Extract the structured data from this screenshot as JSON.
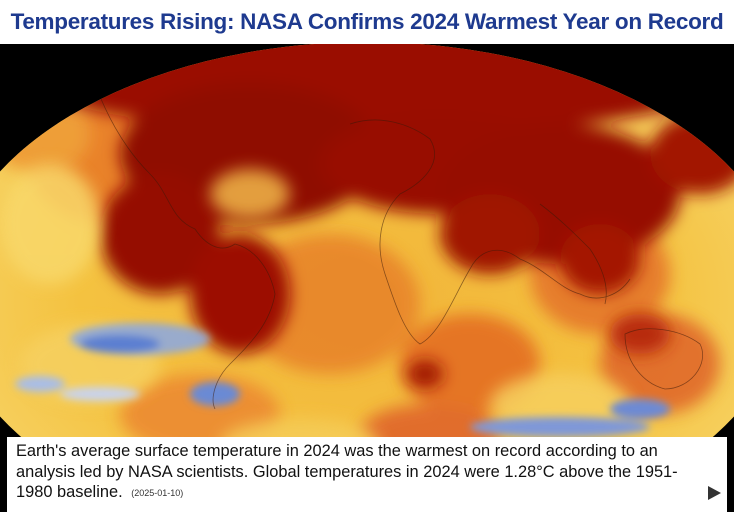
{
  "headline": "Temperatures Rising: NASA Confirms 2024 Warmest Year on Record",
  "caption": {
    "text": "Earth's average surface temperature in 2024 was the warmest on record according to an analysis led by NASA scientists. Global temperatures in 2024 were 1.28°C above the 1951-1980 baseline.",
    "date": "(2025-01-10)"
  },
  "colors": {
    "headline": "#1e3a8f",
    "warm_dark": "#8f0a00",
    "warm_mid": "#d9531e",
    "warm_light": "#f4c542",
    "cool": "#5b7fd1"
  },
  "icons": {
    "next": "play-triangle-icon"
  }
}
